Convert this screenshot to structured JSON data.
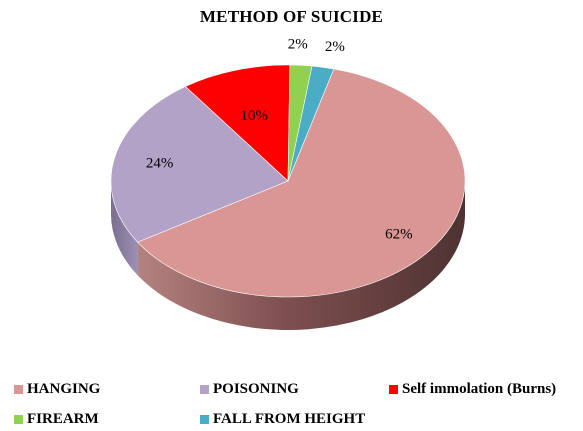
{
  "chart_data": {
    "type": "pie",
    "title": "METHOD OF SUICIDE",
    "categories": [
      "HANGING",
      "POISONING",
      "Self immolation (Burns)",
      "FIREARM",
      "FALL FROM HEIGHT"
    ],
    "values": [
      62,
      24,
      10,
      2,
      2
    ],
    "value_labels": [
      "62%",
      "24%",
      "10%",
      "2%",
      "2%"
    ],
    "colors": [
      "#d99694",
      "#b3a2c7",
      "#ff0000",
      "#92d050",
      "#4bacc6"
    ],
    "style": "3d",
    "legend_position": "bottom"
  }
}
